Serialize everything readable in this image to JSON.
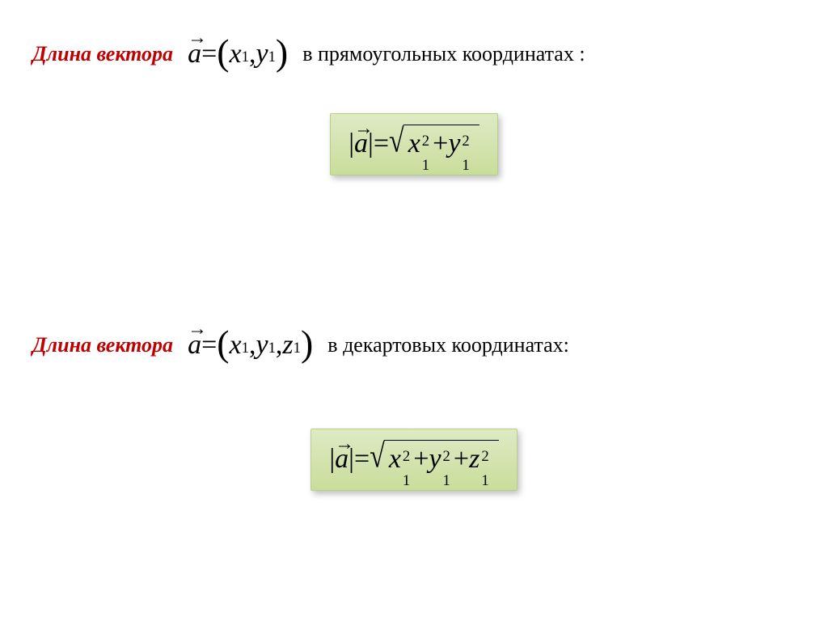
{
  "section1": {
    "label_left": "Длина вектора",
    "label_right": "в прямоугольных координатах :",
    "inline_math": {
      "vec_letter": "a",
      "eq": " = ",
      "paren_open": "(",
      "x_var": "x",
      "x_sub": "1",
      "comma": ", ",
      "y_var": "y",
      "y_sub": "1",
      "paren_close": ")"
    },
    "formula": {
      "bar_open": "|",
      "vec_letter": "a",
      "bar_close": "|",
      "eq": " = ",
      "x_var": "x",
      "x_sup": "2",
      "x_sub": "1",
      "plus": " + ",
      "y_var": "y",
      "y_sup": "2",
      "y_sub": "1"
    }
  },
  "section2": {
    "label_left": "Длина вектора",
    "label_right": "в декартовых координатах:",
    "inline_math": {
      "vec_letter": "a",
      "eq": " = ",
      "paren_open": "(",
      "x_var": "x",
      "x_sub": "1",
      "comma1": ", ",
      "y_var": "y",
      "y_sub": "1",
      "comma2": ", ",
      "z_var": "z",
      "z_sub": "1",
      "paren_close": ")"
    },
    "formula": {
      "bar_open": "|",
      "vec_letter": "a",
      "bar_close": "|",
      "eq": " = ",
      "x_var": "x",
      "x_sup": "2",
      "x_sub": "1",
      "plus1": " + ",
      "y_var": "y",
      "y_sup": "2",
      "y_sub": "1",
      "plus2": " + ",
      "z_var": "z",
      "z_sup": "2",
      "z_sub": "1"
    }
  },
  "style": {
    "label_color": "#c00000",
    "box_bg_top": "#dfeac5",
    "box_bg_bottom": "#c9dd9b",
    "box_border": "#b8cf84",
    "page_bg": "#ffffff",
    "font_family": "Times New Roman",
    "label_fontsize_pt": 20,
    "math_fontsize_pt": 26
  }
}
